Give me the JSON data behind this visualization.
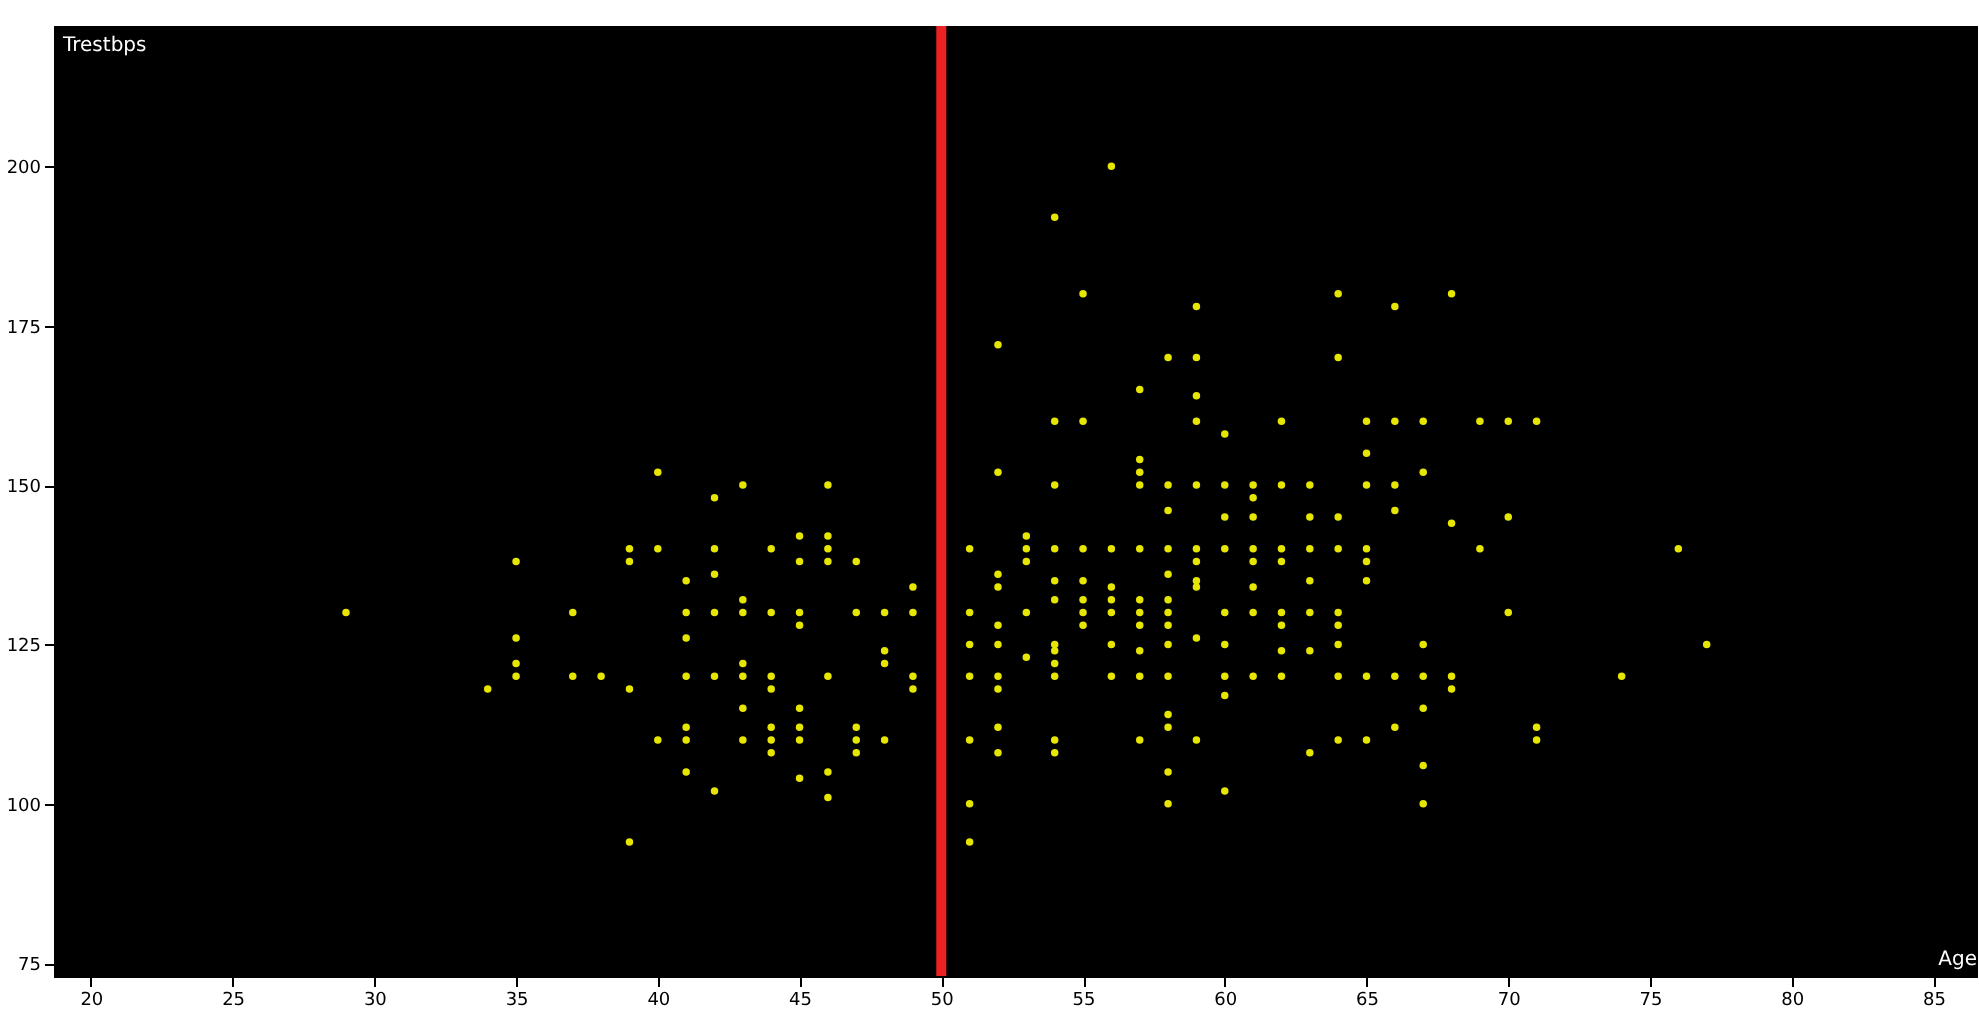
{
  "chart_data": {
    "type": "scatter",
    "xlabel": "Age",
    "ylabel": "Trestbps",
    "xlim": [
      18.7,
      86.5
    ],
    "xticks": [
      20,
      25,
      30,
      35,
      40,
      45,
      50,
      55,
      60,
      65,
      70,
      75,
      80,
      85
    ],
    "ylim": [
      73,
      222
    ],
    "yticks": [
      75,
      100,
      125,
      150,
      175,
      200
    ],
    "grid": false,
    "marker": "circle",
    "ref_lines": [
      {
        "axis": "x",
        "value": 50,
        "color": "#ee2222"
      }
    ],
    "series": [
      {
        "color": "#e6e600",
        "x": [
          29,
          40,
          43,
          46,
          42,
          45,
          46,
          39,
          40,
          42,
          44,
          46,
          35,
          39,
          45,
          46,
          47,
          41,
          42,
          49,
          43,
          37,
          41,
          42,
          43,
          44,
          45,
          47,
          48,
          49,
          45,
          35,
          41,
          48,
          35,
          43,
          48,
          35,
          37,
          38,
          41,
          42,
          43,
          44,
          46,
          49,
          34,
          39,
          44,
          49,
          43,
          45,
          41,
          44,
          45,
          47,
          40,
          41,
          43,
          44,
          45,
          47,
          48,
          44,
          47,
          41,
          46,
          45,
          42,
          46,
          39,
          56,
          54,
          55,
          59,
          64,
          66,
          68,
          52,
          58,
          59,
          64,
          59,
          57,
          54,
          55,
          59,
          62,
          65,
          66,
          67,
          69,
          70,
          71,
          60,
          65,
          57,
          57,
          52,
          67,
          54,
          57,
          58,
          59,
          60,
          61,
          62,
          63,
          65,
          66,
          61,
          58,
          66,
          60,
          61,
          63,
          64,
          70,
          68,
          53,
          51,
          53,
          54,
          55,
          56,
          57,
          58,
          59,
          60,
          61,
          62,
          63,
          64,
          65,
          69,
          76,
          53,
          59,
          61,
          62,
          65,
          52,
          58,
          59,
          54,
          55,
          63,
          65,
          52,
          56,
          59,
          61,
          54,
          55,
          56,
          57,
          58,
          51,
          53,
          55,
          56,
          57,
          58,
          60,
          61,
          62,
          63,
          64,
          70,
          52,
          55,
          57,
          58,
          62,
          64,
          59,
          51,
          52,
          54,
          56,
          58,
          60,
          64,
          67,
          77,
          54,
          57,
          62,
          63,
          53,
          54,
          51,
          52,
          54,
          56,
          57,
          58,
          60,
          61,
          62,
          64,
          65,
          66,
          67,
          68,
          74,
          52,
          68,
          60,
          67,
          58,
          52,
          58,
          66,
          71,
          51,
          54,
          57,
          59,
          64,
          65,
          71,
          52,
          54,
          63,
          67,
          58,
          60,
          51,
          58,
          67,
          51
        ],
        "values": [
          130,
          152,
          150,
          150,
          148,
          142,
          142,
          140,
          140,
          140,
          140,
          140,
          138,
          138,
          138,
          138,
          138,
          135,
          136,
          134,
          132,
          130,
          130,
          130,
          130,
          130,
          130,
          130,
          130,
          130,
          128,
          126,
          126,
          124,
          122,
          122,
          122,
          120,
          120,
          120,
          120,
          120,
          120,
          120,
          120,
          120,
          118,
          118,
          118,
          118,
          115,
          115,
          112,
          112,
          112,
          112,
          110,
          110,
          110,
          110,
          110,
          110,
          110,
          108,
          108,
          105,
          105,
          104,
          102,
          101,
          94,
          200,
          192,
          180,
          178,
          180,
          178,
          180,
          172,
          170,
          170,
          170,
          164,
          165,
          160,
          160,
          160,
          160,
          160,
          160,
          160,
          160,
          160,
          160,
          158,
          155,
          154,
          152,
          152,
          152,
          150,
          150,
          150,
          150,
          150,
          150,
          150,
          150,
          150,
          150,
          148,
          146,
          146,
          145,
          145,
          145,
          145,
          145,
          144,
          142,
          140,
          140,
          140,
          140,
          140,
          140,
          140,
          140,
          140,
          140,
          140,
          140,
          140,
          140,
          140,
          140,
          138,
          138,
          138,
          138,
          138,
          136,
          136,
          135,
          135,
          135,
          135,
          135,
          134,
          134,
          134,
          134,
          132,
          132,
          132,
          132,
          132,
          130,
          130,
          130,
          130,
          130,
          130,
          130,
          130,
          130,
          130,
          130,
          130,
          128,
          128,
          128,
          128,
          128,
          128,
          126,
          125,
          125,
          125,
          125,
          125,
          125,
          125,
          125,
          125,
          124,
          124,
          124,
          124,
          123,
          122,
          120,
          120,
          120,
          120,
          120,
          120,
          120,
          120,
          120,
          120,
          120,
          120,
          120,
          120,
          120,
          118,
          118,
          117,
          115,
          114,
          112,
          112,
          112,
          112,
          110,
          110,
          110,
          110,
          110,
          110,
          110,
          108,
          108,
          108,
          106,
          105,
          102,
          100,
          100,
          100,
          94
        ]
      }
    ]
  }
}
